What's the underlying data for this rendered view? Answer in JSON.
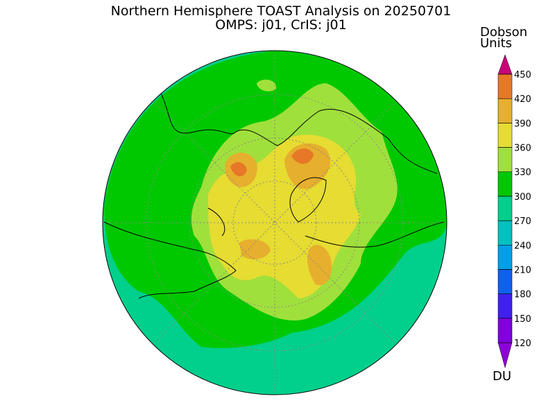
{
  "title": "Northern Hemisphere TOAST Analysis on 20250701",
  "subtitle": "OMPS: j01, CrIS: j01",
  "colorbar": {
    "label": [
      "Dobson",
      "Units"
    ],
    "unit": "DU",
    "ticks": [
      120,
      150,
      180,
      210,
      240,
      270,
      300,
      330,
      360,
      390,
      420,
      450
    ],
    "colors": [
      "#8c00d8",
      "#8000e0",
      "#4020f0",
      "#1060f0",
      "#00a0e8",
      "#00c0c0",
      "#00d08c",
      "#00c800",
      "#a0e03c",
      "#e6dc32",
      "#e6af2d",
      "#e67828",
      "#e61400",
      "#c80078"
    ]
  }
}
